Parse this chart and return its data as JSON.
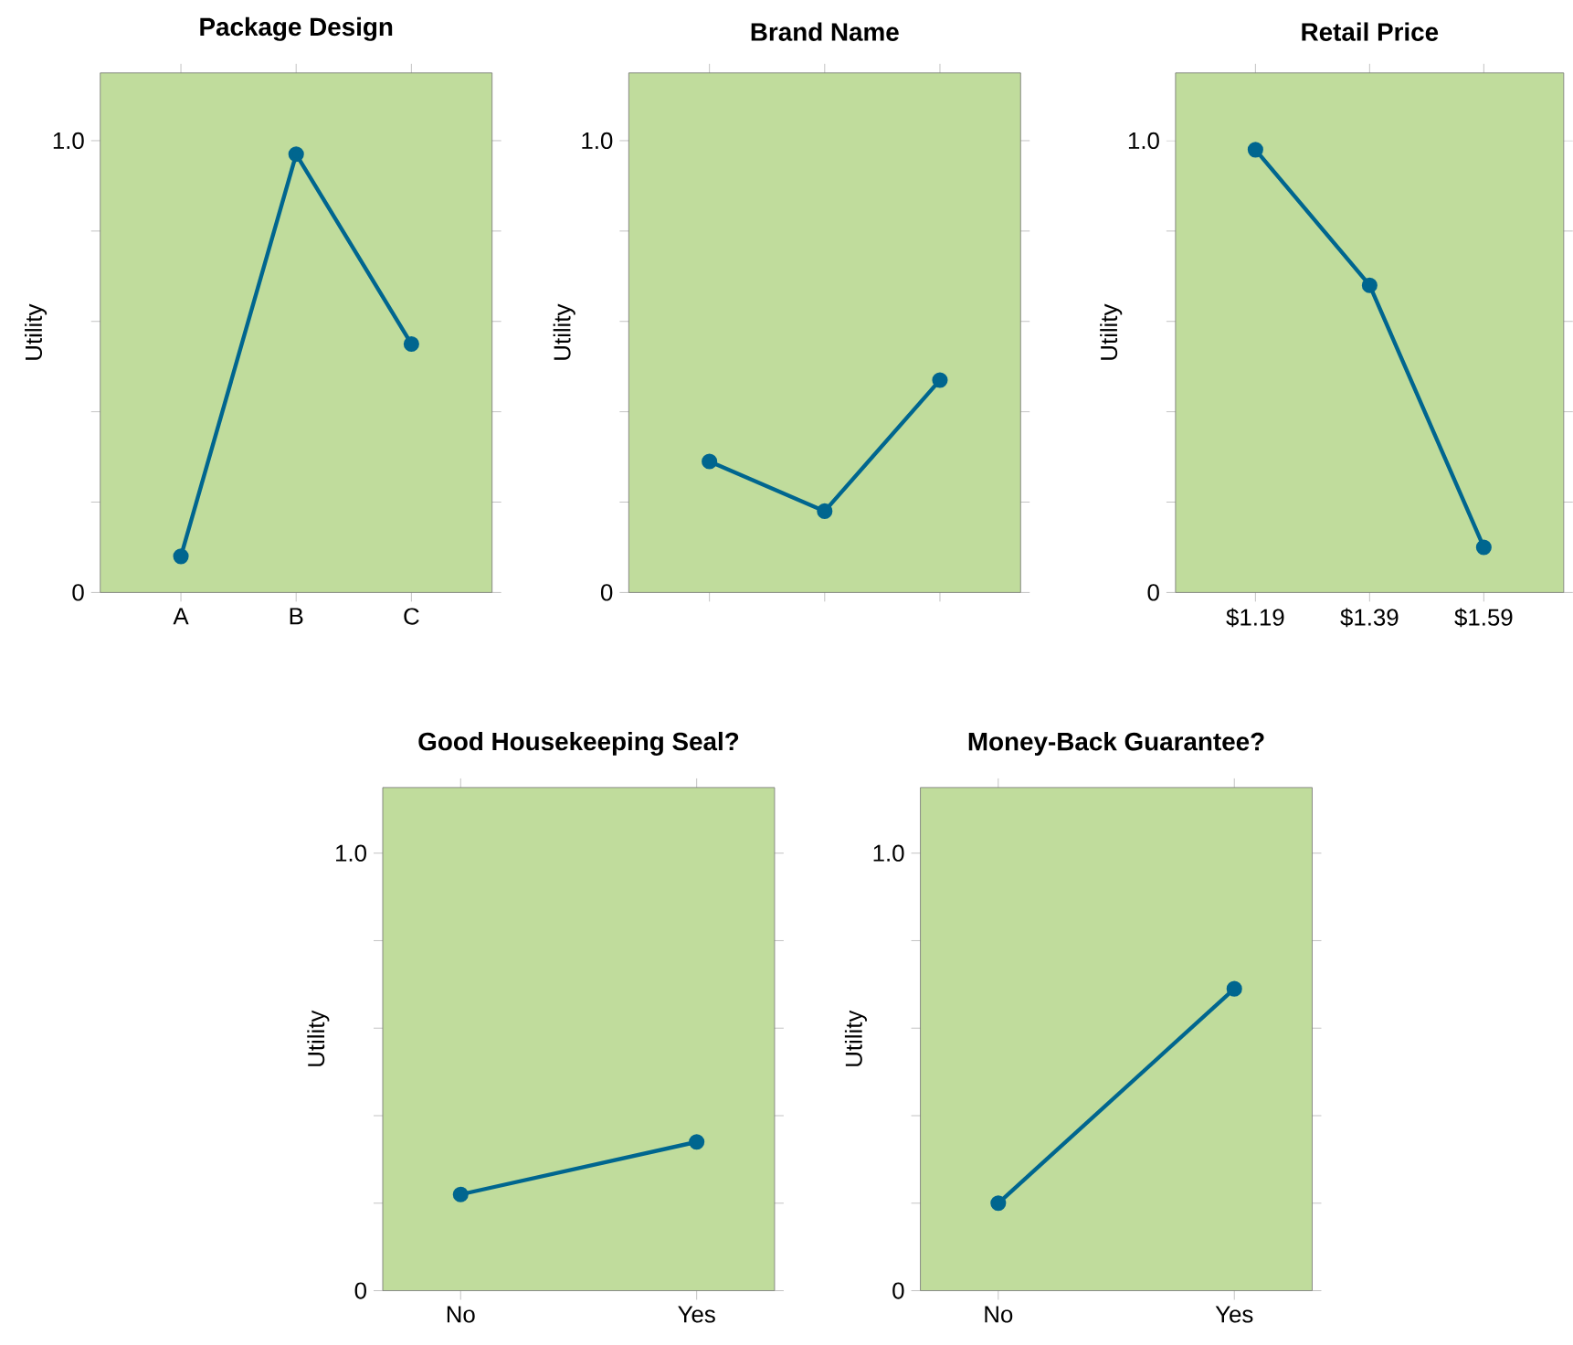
{
  "chart_data": [
    {
      "type": "line",
      "title": "Package Design",
      "ylabel": "Utility",
      "categories": [
        "A",
        "B",
        "C"
      ],
      "values": [
        0.08,
        0.97,
        0.55
      ],
      "color": "#00668f",
      "ylim": [
        0,
        1.15
      ],
      "yticks": [
        0,
        {
          "value": 0.2,
          "label": null
        },
        {
          "value": 0.4,
          "label": null
        },
        {
          "value": 0.6,
          "label": null
        },
        {
          "value": 0.8,
          "label": null
        },
        {
          "value": 1,
          "label": "1.0"
        }
      ],
      "marker": "circle"
    },
    {
      "type": "line",
      "title": "Brand Name",
      "ylabel": "Utility",
      "categories": [
        null,
        null,
        null
      ],
      "values": [
        0.29,
        0.18,
        0.47
      ],
      "color": "#00668f",
      "ylim": [
        0,
        1.15
      ],
      "yticks": [
        0,
        {
          "value": 0.2,
          "label": null
        },
        {
          "value": 0.4,
          "label": null
        },
        {
          "value": 0.6,
          "label": null
        },
        {
          "value": 0.8,
          "label": null
        },
        {
          "value": 1,
          "label": "1.0"
        }
      ],
      "marker": "circle"
    },
    {
      "type": "line",
      "title": "Retail Price",
      "ylabel": "Utility",
      "categories": [
        "$1.19",
        "$1.39",
        "$1.59"
      ],
      "values": [
        0.98,
        0.68,
        0.1
      ],
      "color": "#00668f",
      "ylim": [
        0,
        1.15
      ],
      "yticks": [
        0,
        {
          "value": 0.2,
          "label": null
        },
        {
          "value": 0.4,
          "label": null
        },
        {
          "value": 0.6,
          "label": null
        },
        {
          "value": 0.8,
          "label": null
        },
        {
          "value": 1,
          "label": "1.0"
        }
      ],
      "marker": "circle"
    },
    {
      "type": "line",
      "title": "Good Housekeeping Seal?",
      "ylabel": "Utility",
      "categories": [
        "No",
        "Yes"
      ],
      "values": [
        0.22,
        0.34
      ],
      "color": "#00668f",
      "ylim": [
        0,
        1.15
      ],
      "yticks": [
        0,
        {
          "value": 0.2,
          "label": null
        },
        {
          "value": 0.4,
          "label": null
        },
        {
          "value": 0.6,
          "label": null
        },
        {
          "value": 0.8,
          "label": null
        },
        {
          "value": 1,
          "label": "1.0"
        }
      ],
      "marker": "circle"
    },
    {
      "type": "line",
      "title": "Money-Back Guarantee?",
      "ylabel": "Utility",
      "categories": [
        "No",
        "Yes"
      ],
      "values": [
        0.2,
        0.69
      ],
      "color": "#00668f",
      "ylim": [
        0,
        1.15
      ],
      "yticks": [
        0,
        {
          "value": 0.2,
          "label": null
        },
        {
          "value": 0.4,
          "label": null
        },
        {
          "value": 0.6,
          "label": null
        },
        {
          "value": 0.8,
          "label": null
        },
        {
          "value": 1,
          "label": "1.0"
        }
      ],
      "marker": "circle"
    }
  ]
}
